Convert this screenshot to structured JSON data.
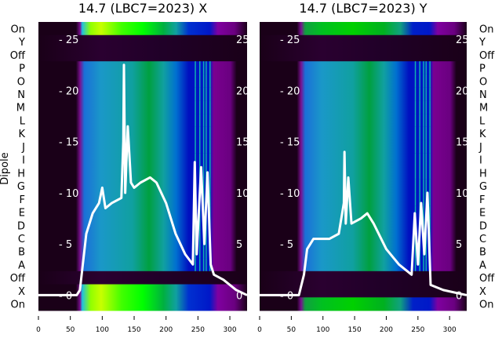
{
  "chart_data": [
    {
      "type": "heatmap",
      "title": "14.7 (LBC7=2023) X",
      "ylabel": "Dipole",
      "row_labels": [
        "On",
        "Y",
        "Off",
        "P",
        "O",
        "N",
        "M",
        "L",
        "K",
        "J",
        "I",
        "H",
        "G",
        "F",
        "E",
        "D",
        "C",
        "B",
        "A",
        "Off",
        "X",
        "On"
      ],
      "row_kind": [
        "on",
        "off",
        "off",
        "n",
        "n",
        "n",
        "n",
        "n",
        "n",
        "n",
        "n",
        "n",
        "n",
        "n",
        "n",
        "n",
        "n",
        "n",
        "n",
        "off",
        "on",
        "on"
      ],
      "xlim": [
        0,
        327
      ],
      "xticks": [
        0,
        50,
        100,
        150,
        200,
        250,
        300
      ],
      "inner_ylim": [
        -1.5,
        26.7
      ],
      "inner_yticks": [
        0,
        5,
        10,
        15,
        20,
        25
      ],
      "line": {
        "color": "#ffffff",
        "x": [
          0,
          60,
          65,
          75,
          85,
          95,
          100,
          105,
          115,
          130,
          133,
          134,
          136,
          140,
          145,
          150,
          160,
          175,
          185,
          200,
          215,
          230,
          242,
          245,
          248,
          255,
          260,
          265,
          270,
          275,
          290,
          310,
          327
        ],
        "y": [
          0,
          0,
          0.5,
          6,
          8,
          9,
          10.5,
          8.5,
          9,
          9.5,
          15,
          22.5,
          10,
          16.5,
          11,
          10.5,
          11,
          11.5,
          11,
          9,
          6,
          4,
          3,
          13,
          4,
          12.5,
          5,
          12,
          3,
          2,
          1.5,
          0.5,
          0
        ]
      }
    },
    {
      "type": "heatmap",
      "title": "14.7 (LBC7=2023) Y",
      "row_labels": [
        "On",
        "Y",
        "Off",
        "P",
        "O",
        "N",
        "M",
        "L",
        "K",
        "J",
        "I",
        "H",
        "G",
        "F",
        "E",
        "D",
        "C",
        "B",
        "A",
        "Off",
        "X",
        "On"
      ],
      "row_kind": [
        "on2",
        "off",
        "off",
        "n",
        "n",
        "n",
        "n",
        "n",
        "n",
        "n",
        "n",
        "n",
        "n",
        "n",
        "n",
        "n",
        "n",
        "n",
        "n",
        "off",
        "off",
        "on2"
      ],
      "xlim": [
        0,
        327
      ],
      "xticks": [
        0,
        50,
        100,
        150,
        200,
        250,
        300
      ],
      "inner_ylim": [
        -1.5,
        26.7
      ],
      "inner_yticks": [
        0,
        5,
        10,
        15,
        20,
        25
      ],
      "line": {
        "color": "#ffffff",
        "x": [
          0,
          62,
          70,
          75,
          85,
          110,
          125,
          133,
          134,
          136,
          140,
          145,
          160,
          170,
          180,
          200,
          220,
          240,
          245,
          250,
          255,
          260,
          265,
          270,
          290,
          327
        ],
        "y": [
          0,
          0,
          2,
          4.5,
          5.5,
          5.5,
          6,
          9,
          14,
          7,
          11.5,
          7,
          7.5,
          8,
          7,
          4.5,
          3,
          2,
          8,
          3,
          9,
          4,
          10,
          1,
          0.5,
          0
        ]
      }
    }
  ]
}
